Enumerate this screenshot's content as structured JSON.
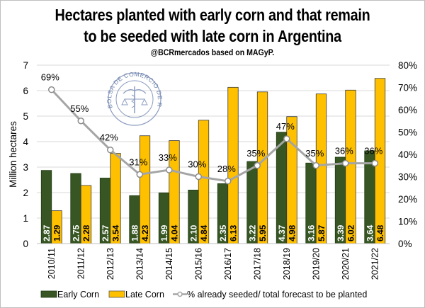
{
  "chart_data": {
    "type": "bar",
    "title_line1": "Hectares planted with early corn and that remain",
    "title_line2": "to be seeded with late corn in Argentina",
    "subtitle": "@BCRmercados based on MAGyP.",
    "ylabel": "Million hectares",
    "ylim": [
      0,
      7
    ],
    "y2lim": [
      0,
      0.8
    ],
    "grid": true,
    "legend_position": "bottom",
    "categories": [
      "2010/11",
      "2011/12",
      "2012/13",
      "2013/14",
      "2014/15",
      "2015/16",
      "2016/17",
      "2017/18",
      "2018/19",
      "2019/20",
      "2020/21",
      "2021/22"
    ],
    "y_ticks": [
      "0",
      "1",
      "2",
      "3",
      "4",
      "5",
      "6",
      "7"
    ],
    "y2_ticks": [
      "0%",
      "10%",
      "20%",
      "30%",
      "40%",
      "50%",
      "60%",
      "70%",
      "80%"
    ],
    "series": [
      {
        "name": "Early Corn",
        "type": "bar",
        "color": "#375623",
        "values": [
          2.87,
          2.75,
          2.57,
          1.88,
          1.99,
          2.1,
          2.35,
          3.22,
          4.37,
          3.16,
          3.39,
          3.64
        ],
        "labels": [
          "2.87",
          "2.75",
          "2.57",
          "1.88",
          "1.99",
          "2.10",
          "2.35",
          "3.22",
          "4.37",
          "3.16",
          "3.39",
          "3.64"
        ]
      },
      {
        "name": "Late Corn",
        "type": "bar",
        "color": "#FFC000",
        "values": [
          1.29,
          2.28,
          3.54,
          4.23,
          4.04,
          4.84,
          6.13,
          5.95,
          4.98,
          5.87,
          6.02,
          6.48
        ],
        "labels": [
          "1.29",
          "2.28",
          "3.54",
          "4.23",
          "4.04",
          "4.84",
          "6.13",
          "5.95",
          "4.98",
          "5.87",
          "6.02",
          "6.48"
        ]
      },
      {
        "name": "% already seeded/ total forecast to be planted",
        "type": "line",
        "axis": "secondary",
        "color": "#A5A5A5",
        "values": [
          0.69,
          0.55,
          0.42,
          0.31,
          0.33,
          0.3,
          0.28,
          0.35,
          0.47,
          0.35,
          0.36,
          0.36
        ],
        "labels": [
          "69%",
          "55%",
          "42%",
          "31%",
          "33%",
          "30%",
          "28%",
          "35%",
          "47%",
          "35%",
          "36%",
          "36%"
        ]
      }
    ],
    "logo_text": "BOLSA DE COMERCIO DE ROSARIO"
  }
}
